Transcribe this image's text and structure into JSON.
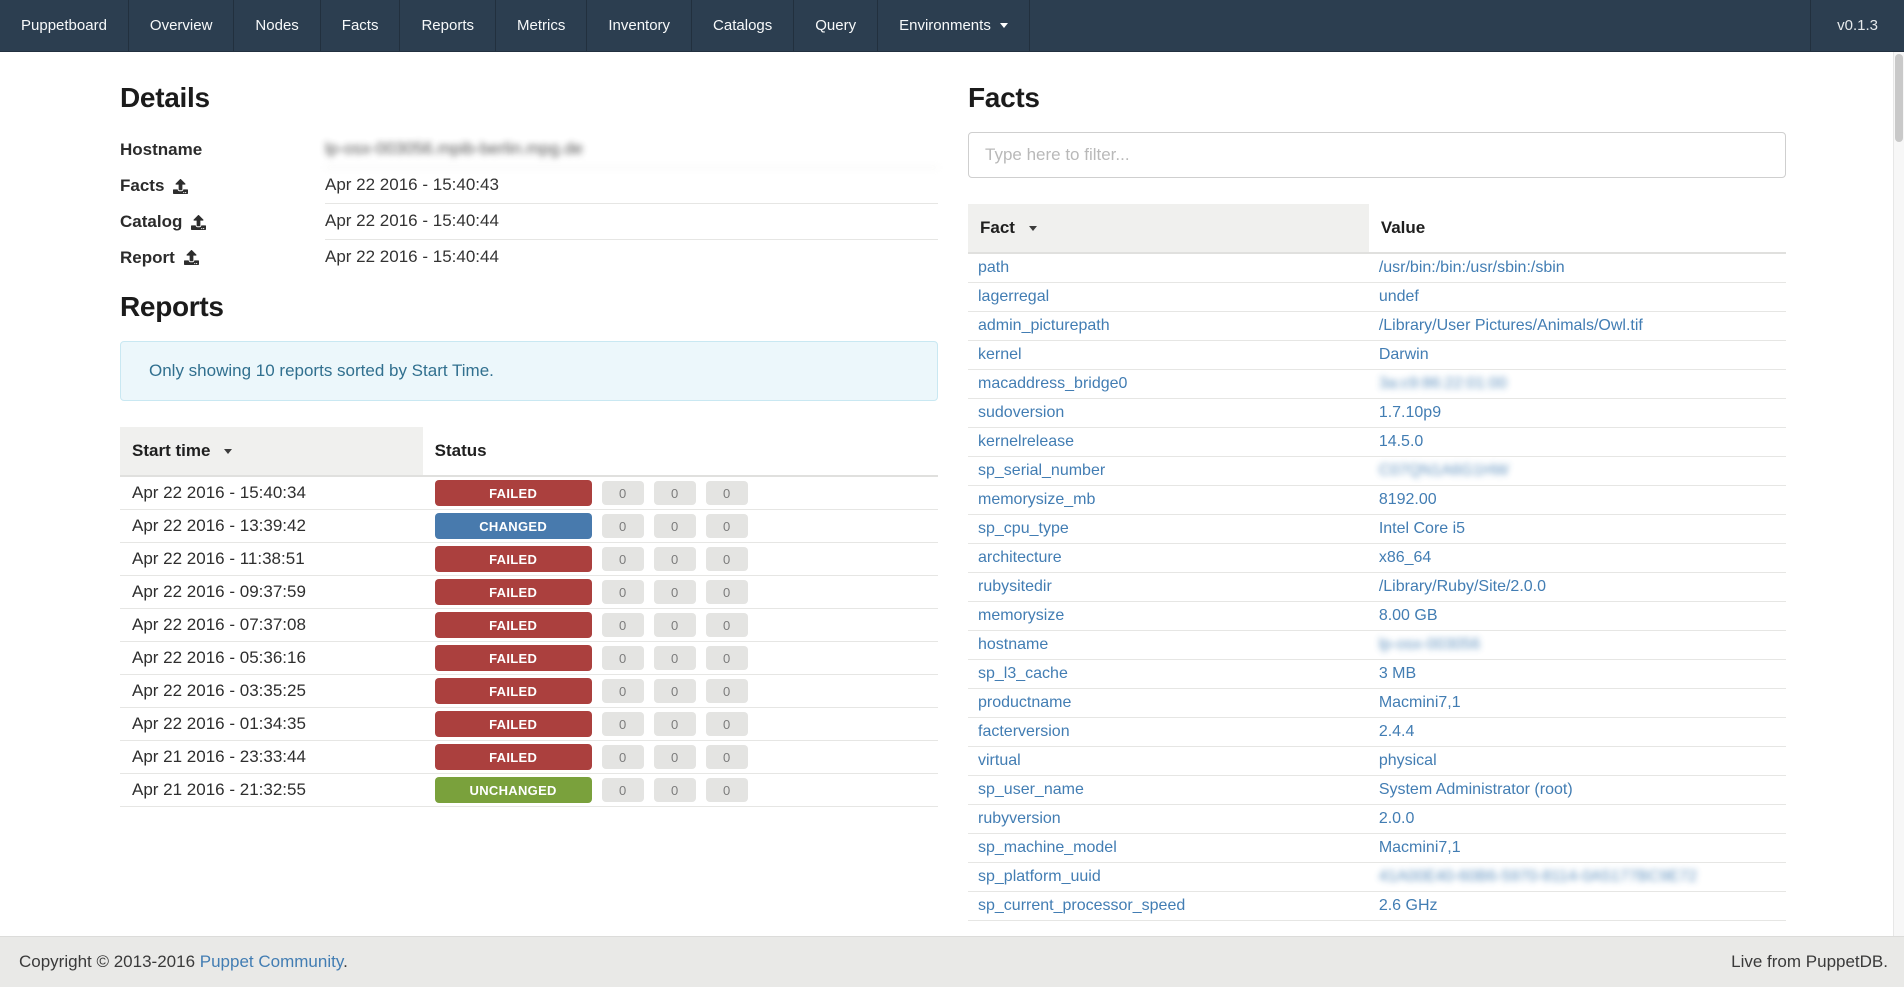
{
  "navbar": {
    "brand": "Puppetboard",
    "items": [
      "Overview",
      "Nodes",
      "Facts",
      "Reports",
      "Metrics",
      "Inventory",
      "Catalogs",
      "Query"
    ],
    "dropdown_label": "Environments",
    "version": "v0.1.3"
  },
  "details": {
    "title": "Details",
    "rows": [
      {
        "label": "Hostname",
        "icon": "",
        "value": "lp-osx-003056.mpib-berlin.mpg.de",
        "blurred": true
      },
      {
        "label": "Facts",
        "icon": "upload",
        "value": "Apr 22 2016 - 15:40:43",
        "blurred": false
      },
      {
        "label": "Catalog",
        "icon": "upload",
        "value": "Apr 22 2016 - 15:40:44",
        "blurred": false
      },
      {
        "label": "Report",
        "icon": "upload",
        "value": "Apr 22 2016 - 15:40:44",
        "blurred": false
      }
    ]
  },
  "reports": {
    "title": "Reports",
    "notice": "Only showing 10 reports sorted by Start Time.",
    "columns": {
      "start_time": "Start time",
      "status": "Status"
    },
    "rows": [
      {
        "start_time": "Apr 22 2016 - 15:40:34",
        "status": "FAILED",
        "counts": [
          "0",
          "0",
          "0"
        ]
      },
      {
        "start_time": "Apr 22 2016 - 13:39:42",
        "status": "CHANGED",
        "counts": [
          "0",
          "0",
          "0"
        ]
      },
      {
        "start_time": "Apr 22 2016 - 11:38:51",
        "status": "FAILED",
        "counts": [
          "0",
          "0",
          "0"
        ]
      },
      {
        "start_time": "Apr 22 2016 - 09:37:59",
        "status": "FAILED",
        "counts": [
          "0",
          "0",
          "0"
        ]
      },
      {
        "start_time": "Apr 22 2016 - 07:37:08",
        "status": "FAILED",
        "counts": [
          "0",
          "0",
          "0"
        ]
      },
      {
        "start_time": "Apr 22 2016 - 05:36:16",
        "status": "FAILED",
        "counts": [
          "0",
          "0",
          "0"
        ]
      },
      {
        "start_time": "Apr 22 2016 - 03:35:25",
        "status": "FAILED",
        "counts": [
          "0",
          "0",
          "0"
        ]
      },
      {
        "start_time": "Apr 22 2016 - 01:34:35",
        "status": "FAILED",
        "counts": [
          "0",
          "0",
          "0"
        ]
      },
      {
        "start_time": "Apr 21 2016 - 23:33:44",
        "status": "FAILED",
        "counts": [
          "0",
          "0",
          "0"
        ]
      },
      {
        "start_time": "Apr 21 2016 - 21:32:55",
        "status": "UNCHANGED",
        "counts": [
          "0",
          "0",
          "0"
        ]
      }
    ]
  },
  "facts": {
    "title": "Facts",
    "filter_placeholder": "Type here to filter...",
    "columns": {
      "fact": "Fact",
      "value": "Value"
    },
    "rows": [
      {
        "fact": "path",
        "value": "/usr/bin:/bin:/usr/sbin:/sbin",
        "blurred": false
      },
      {
        "fact": "lagerregal",
        "value": "undef",
        "blurred": false
      },
      {
        "fact": "admin_picturepath",
        "value": "/Library/User Pictures/Animals/Owl.tif",
        "blurred": false
      },
      {
        "fact": "kernel",
        "value": "Darwin",
        "blurred": false
      },
      {
        "fact": "macaddress_bridge0",
        "value": "3a:c9:86:22:01:00",
        "blurred": true
      },
      {
        "fact": "sudoversion",
        "value": "1.7.10p9",
        "blurred": false
      },
      {
        "fact": "kernelrelease",
        "value": "14.5.0",
        "blurred": false
      },
      {
        "fact": "sp_serial_number",
        "value": "C07QN1A6G1HW",
        "blurred": true
      },
      {
        "fact": "memorysize_mb",
        "value": "8192.00",
        "blurred": false
      },
      {
        "fact": "sp_cpu_type",
        "value": "Intel Core i5",
        "blurred": false
      },
      {
        "fact": "architecture",
        "value": "x86_64",
        "blurred": false
      },
      {
        "fact": "rubysitedir",
        "value": "/Library/Ruby/Site/2.0.0",
        "blurred": false
      },
      {
        "fact": "memorysize",
        "value": "8.00 GB",
        "blurred": false
      },
      {
        "fact": "hostname",
        "value": "lp-osx-003056",
        "blurred": true
      },
      {
        "fact": "sp_l3_cache",
        "value": "3 MB",
        "blurred": false
      },
      {
        "fact": "productname",
        "value": "Macmini7,1",
        "blurred": false
      },
      {
        "fact": "facterversion",
        "value": "2.4.4",
        "blurred": false
      },
      {
        "fact": "virtual",
        "value": "physical",
        "blurred": false
      },
      {
        "fact": "sp_user_name",
        "value": "System Administrator (root)",
        "blurred": false
      },
      {
        "fact": "rubyversion",
        "value": "2.0.0",
        "blurred": false
      },
      {
        "fact": "sp_machine_model",
        "value": "Macmini7,1",
        "blurred": false
      },
      {
        "fact": "sp_platform_uuid",
        "value": "41A00E40-60B6-5970-8114-0A5177BC9E72",
        "blurred": true
      },
      {
        "fact": "sp_current_processor_speed",
        "value": "2.6 GHz",
        "blurred": false
      }
    ]
  },
  "footer": {
    "copyright_prefix": "Copyright © 2013-2016 ",
    "copyright_link": "Puppet Community",
    "copyright_suffix": ".",
    "live": "Live from PuppetDB."
  },
  "colors": {
    "navbar_bg": "#2c3e50",
    "link": "#427db3",
    "alert_text": "#31708f",
    "alert_bg": "#ecf7fb",
    "alert_border": "#c9e8f2",
    "count_badge_bg": "#e4e4e2",
    "status": {
      "FAILED": "#ab403e",
      "CHANGED": "#487aad",
      "UNCHANGED": "#7aa13c"
    }
  }
}
